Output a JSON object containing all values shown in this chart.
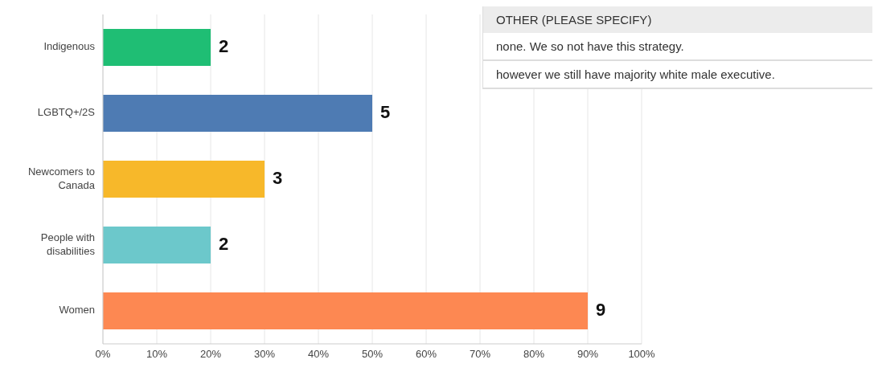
{
  "chart_data": {
    "type": "bar",
    "orientation": "horizontal",
    "categories": [
      "Indigenous",
      "LGBTQ+/2S",
      "Newcomers to Canada",
      "People with disabilities",
      "Women"
    ],
    "values": [
      20,
      50,
      30,
      20,
      90
    ],
    "colors": [
      "#1fbe74",
      "#4e7bb3",
      "#f7b82a",
      "#6cc8cb",
      "#fd8852"
    ],
    "xlim": [
      0,
      100
    ],
    "xticks": [
      {
        "value": 0,
        "label": "0%"
      },
      {
        "value": 10,
        "label": "10%"
      },
      {
        "value": 20,
        "label": "20%"
      },
      {
        "value": 30,
        "label": "30%"
      },
      {
        "value": 40,
        "label": "40%"
      },
      {
        "value": 50,
        "label": "50%"
      },
      {
        "value": 60,
        "label": "60%"
      },
      {
        "value": 70,
        "label": "70%"
      },
      {
        "value": 80,
        "label": "80%"
      },
      {
        "value": 90,
        "label": "90%"
      },
      {
        "value": 100,
        "label": "100%"
      }
    ],
    "grid": "x",
    "annotations": [
      {
        "text": "2",
        "x": 20,
        "y": "Indigenous"
      },
      {
        "text": "5",
        "x": 50,
        "y": "LGBTQ+/2S"
      },
      {
        "text": "3",
        "x": 30,
        "y": "Newcomers to Canada"
      },
      {
        "text": "2",
        "x": 20,
        "y": "People with disabilities"
      },
      {
        "text": "9",
        "x": 90,
        "y": "Women"
      },
      "OTHER (PLEASE SPECIFY)",
      "none. We so not have this strategy.",
      "however we still have majority white male executive."
    ]
  }
}
